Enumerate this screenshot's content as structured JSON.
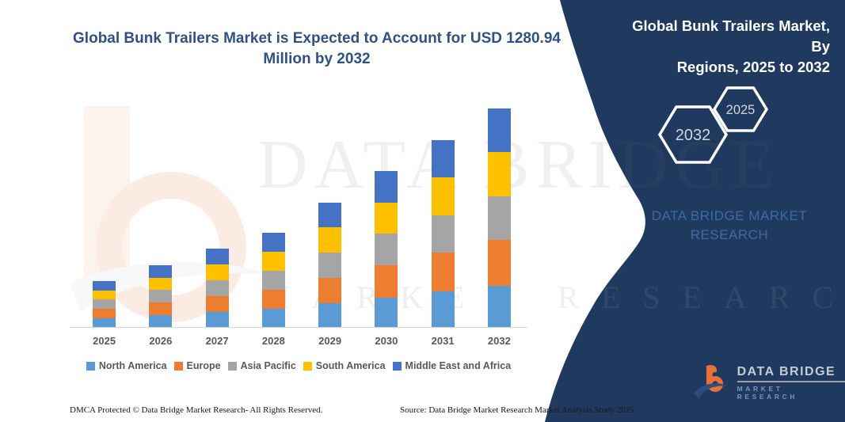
{
  "title_lines": [
    "Global Bunk Trailers Market is Expected to Account for USD 1280.94",
    "Million by 2032"
  ],
  "panel": {
    "heading_lines": [
      "Global Bunk Trailers Market, By",
      "Regions, 2025 to 2032"
    ],
    "hexagon_left": "2032",
    "hexagon_right": "2025",
    "brand_lines": [
      "DATA BRIDGE MARKET",
      "RESEARCH"
    ],
    "bg_color": "#20395f",
    "brand_text_color": "#3d6ba5"
  },
  "logo": {
    "name": "DATA BRIDGE",
    "tagline": "MARKET RESEARCH"
  },
  "watermark": {
    "line1": "DATA BRIDGE",
    "line2": "MARKET RESEARCH"
  },
  "footer": {
    "left": "DMCA Protected © Data Bridge Market Research-  All Rights Reserved.",
    "right": "Source: Data Bridge Market Research  Market Analysis Study 2025"
  },
  "chart_data": {
    "type": "bar",
    "stacked": true,
    "title": "Global Bunk Trailers Market is Expected to Account for USD 1280.94 Million by 2032",
    "unit": "USD Million",
    "categories": [
      "2025",
      "2026",
      "2027",
      "2028",
      "2029",
      "2030",
      "2031",
      "2032"
    ],
    "series": [
      {
        "name": "North America",
        "color": "#5B9BD5",
        "values": [
          50,
          68,
          87,
          105,
          138,
          172,
          208,
          243
        ]
      },
      {
        "name": "Europe",
        "color": "#ED7D31",
        "values": [
          57,
          76,
          95,
          115,
          152,
          190,
          228,
          266
        ]
      },
      {
        "name": "Asia Pacific",
        "color": "#A5A5A5",
        "values": [
          54,
          72,
          92,
          110,
          145,
          185,
          220,
          259
        ]
      },
      {
        "name": "South America",
        "color": "#FFC000",
        "values": [
          54,
          72,
          92,
          110,
          148,
          184,
          221,
          257
        ]
      },
      {
        "name": "Middle East and Africa",
        "color": "#4472C4",
        "values": [
          54,
          74,
          93,
          112,
          146,
          183,
          218,
          255.94
        ]
      }
    ],
    "totals": [
      269,
      362,
      459,
      552,
      729,
      914,
      1095,
      1280.94
    ],
    "highlight_total_2032": 1280.94,
    "xlabel": "",
    "ylabel": "",
    "grid": false,
    "legend_position": "bottom"
  }
}
